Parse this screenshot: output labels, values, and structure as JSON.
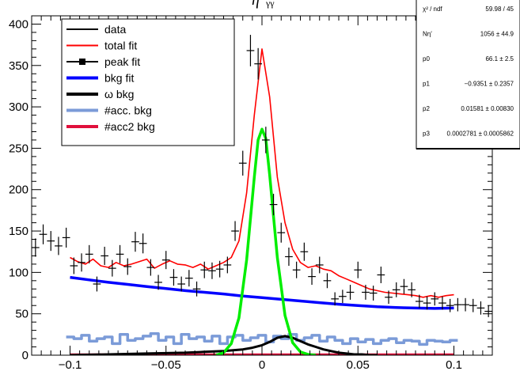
{
  "header": {
    "title": "η′",
    "title_visible_part": "γγ",
    "title_right_part": ""
  },
  "legend": [
    {
      "label": "data",
      "color": "#000000"
    },
    {
      "label": "total fit",
      "color": "#ff0000"
    },
    {
      "label": "peak fit",
      "color": "#000000"
    },
    {
      "label": "bkg fit",
      "color": "#0000ff"
    },
    {
      "label": "ω bkg",
      "color": "#000000"
    },
    {
      "label": "#acc. bkg",
      "color": "#7b9bd8"
    },
    {
      "label": "#acc2 bkg",
      "color": "#e0103c"
    }
  ],
  "stats": [
    {
      "name": "χ² / ndf",
      "value": "59.98 / 45"
    },
    {
      "name": "Nη′",
      "value": "1056 ± 44.9"
    },
    {
      "name": "p0",
      "value": "66.1 ± 2.5"
    },
    {
      "name": "p1",
      "value": "−0.9351 ± 0.2357"
    },
    {
      "name": "p2",
      "value": "0.01581 ± 0.00830"
    },
    {
      "name": "p3",
      "value": "0.0002781 ± 0.0005862"
    }
  ],
  "chart_data": {
    "type": "scatter",
    "xlim": [
      -0.12,
      0.12
    ],
    "ylim": [
      0,
      410
    ],
    "x_ticks": [
      -0.1,
      -0.05,
      0,
      0.05,
      0.1
    ],
    "x_tick_labels": [
      "−0.1",
      "−0.05",
      "0",
      "0.05",
      "0.1"
    ],
    "y_ticks": [
      0,
      50,
      100,
      150,
      200,
      250,
      300,
      350,
      400
    ],
    "y_tick_labels": [
      "0",
      "50",
      "100",
      "150",
      "200",
      "250",
      "300",
      "350",
      "400"
    ],
    "bin_width": 0.004,
    "colors": {
      "data": "#000000",
      "total": "#ff0000",
      "peak": "#00ee00",
      "bkg": "#0000ff",
      "omega": "#000000",
      "acc": "#7b9bd8",
      "acc2": "#e0103c"
    },
    "series": [
      {
        "name": "data",
        "x": [
          -0.118,
          -0.114,
          -0.11,
          -0.106,
          -0.102,
          -0.098,
          -0.094,
          -0.09,
          -0.086,
          -0.082,
          -0.078,
          -0.074,
          -0.07,
          -0.066,
          -0.062,
          -0.058,
          -0.054,
          -0.05,
          -0.046,
          -0.042,
          -0.038,
          -0.034,
          -0.03,
          -0.026,
          -0.022,
          -0.018,
          -0.014,
          -0.01,
          -0.006,
          -0.002,
          0.002,
          0.006,
          0.01,
          0.014,
          0.018,
          0.022,
          0.026,
          0.03,
          0.034,
          0.038,
          0.042,
          0.046,
          0.05,
          0.054,
          0.058,
          0.062,
          0.066,
          0.07,
          0.074,
          0.078,
          0.082,
          0.086,
          0.09,
          0.094,
          0.098,
          0.102,
          0.106,
          0.11,
          0.114,
          0.118
        ],
        "y": [
          130,
          146,
          138,
          132,
          142,
          108,
          112,
          122,
          86,
          120,
          105,
          122,
          107,
          137,
          135,
          106,
          88,
          115,
          94,
          86,
          93,
          80,
          103,
          102,
          104,
          109,
          150,
          232,
          368,
          352,
          260,
          182,
          148,
          119,
          103,
          125,
          95,
          109,
          90,
          68,
          71,
          76,
          103,
          76,
          75,
          97,
          70,
          79,
          83,
          79,
          65,
          63,
          68,
          63,
          60,
          61,
          61,
          60,
          57,
          53
        ],
        "error": [
          11,
          12,
          12,
          11,
          12,
          10,
          11,
          11,
          9,
          11,
          10,
          11,
          10,
          12,
          12,
          10,
          9,
          11,
          10,
          9,
          10,
          9,
          10,
          10,
          10,
          10,
          12,
          15,
          19,
          19,
          16,
          13,
          12,
          11,
          10,
          11,
          10,
          10,
          9,
          8,
          8,
          9,
          10,
          9,
          9,
          10,
          8,
          9,
          9,
          9,
          8,
          8,
          8,
          8,
          8,
          8,
          8,
          8,
          8,
          7
        ]
      },
      {
        "name": "total fit",
        "x": [
          -0.1,
          -0.096,
          -0.092,
          -0.088,
          -0.084,
          -0.08,
          -0.076,
          -0.072,
          -0.068,
          -0.064,
          -0.06,
          -0.056,
          -0.052,
          -0.048,
          -0.044,
          -0.04,
          -0.036,
          -0.032,
          -0.028,
          -0.024,
          -0.02,
          -0.016,
          -0.012,
          -0.008,
          -0.004,
          0.0,
          0.004,
          0.008,
          0.012,
          0.016,
          0.02,
          0.024,
          0.028,
          0.032,
          0.036,
          0.04,
          0.044,
          0.048,
          0.052,
          0.056,
          0.06,
          0.064,
          0.068,
          0.072,
          0.076,
          0.08,
          0.084,
          0.088,
          0.092,
          0.096,
          0.1
        ],
        "y": [
          118,
          113,
          110,
          116,
          108,
          106,
          112,
          108,
          110,
          113,
          116,
          105,
          110,
          114,
          110,
          109,
          106,
          110,
          104,
          108,
          112,
          118,
          138,
          196,
          290,
          370,
          312,
          215,
          160,
          128,
          112,
          106,
          108,
          104,
          102,
          96,
          92,
          88,
          84,
          80,
          78,
          76,
          75,
          74,
          73,
          72,
          70,
          72,
          70,
          72,
          73
        ]
      },
      {
        "name": "peak fit",
        "x": [
          -0.024,
          -0.02,
          -0.016,
          -0.012,
          -0.008,
          -0.004,
          -0.002,
          0.0,
          0.002,
          0.004,
          0.008,
          0.012,
          0.016,
          0.02,
          0.024,
          0.028
        ],
        "y": [
          0,
          3,
          14,
          45,
          115,
          215,
          260,
          273,
          262,
          218,
          118,
          48,
          15,
          4,
          1,
          0
        ]
      },
      {
        "name": "bkg fit",
        "x": [
          -0.1,
          -0.09,
          -0.08,
          -0.07,
          -0.06,
          -0.05,
          -0.04,
          -0.03,
          -0.02,
          -0.01,
          0.0,
          0.01,
          0.02,
          0.03,
          0.04,
          0.05,
          0.06,
          0.07,
          0.08,
          0.09,
          0.1
        ],
        "y": [
          94,
          91,
          88,
          85.5,
          83,
          80.5,
          78,
          76,
          74,
          71.5,
          69.5,
          67.5,
          65.5,
          63.5,
          61.5,
          60,
          58.5,
          57.5,
          57,
          56.5,
          57
        ]
      },
      {
        "name": "ω bkg",
        "x": [
          -0.1,
          -0.08,
          -0.06,
          -0.04,
          -0.03,
          -0.02,
          -0.01,
          -0.005,
          0.0,
          0.004,
          0.008,
          0.012,
          0.016,
          0.02,
          0.024,
          0.028,
          0.032,
          0.036,
          0.04,
          0.044,
          0.048,
          0.052,
          0.056,
          0.06
        ],
        "y": [
          0,
          1,
          2,
          3,
          4,
          5,
          7,
          9,
          12,
          16,
          21,
          23,
          21,
          17,
          13,
          10,
          7,
          5,
          3,
          2,
          1,
          1,
          0,
          0
        ]
      },
      {
        "name": "#acc. bkg",
        "x": [
          -0.1,
          -0.096,
          -0.092,
          -0.088,
          -0.084,
          -0.08,
          -0.076,
          -0.072,
          -0.068,
          -0.064,
          -0.06,
          -0.056,
          -0.052,
          -0.048,
          -0.044,
          -0.04,
          -0.036,
          -0.032,
          -0.028,
          -0.024,
          -0.02,
          -0.016,
          -0.012,
          -0.008,
          -0.004,
          0.0,
          0.004,
          0.008,
          0.012,
          0.016,
          0.02,
          0.024,
          0.028,
          0.032,
          0.036,
          0.04,
          0.044,
          0.048,
          0.052,
          0.056,
          0.06,
          0.064,
          0.068,
          0.072,
          0.076,
          0.08,
          0.084,
          0.088,
          0.092,
          0.096,
          0.1
        ],
        "y": [
          22,
          20,
          24,
          17,
          20,
          22,
          14,
          25,
          18,
          20,
          23,
          26,
          18,
          22,
          14,
          25,
          20,
          22,
          17,
          23,
          14,
          22,
          24,
          18,
          21,
          24,
          16,
          23,
          20,
          25,
          18,
          21,
          24,
          17,
          22,
          18,
          14,
          20,
          16,
          19,
          14,
          18,
          20,
          15,
          18,
          17,
          13,
          18,
          17,
          16,
          18
        ]
      },
      {
        "name": "#acc2 bkg",
        "x": [
          -0.1,
          0.1
        ],
        "y": [
          0.8,
          0.8
        ]
      }
    ]
  }
}
